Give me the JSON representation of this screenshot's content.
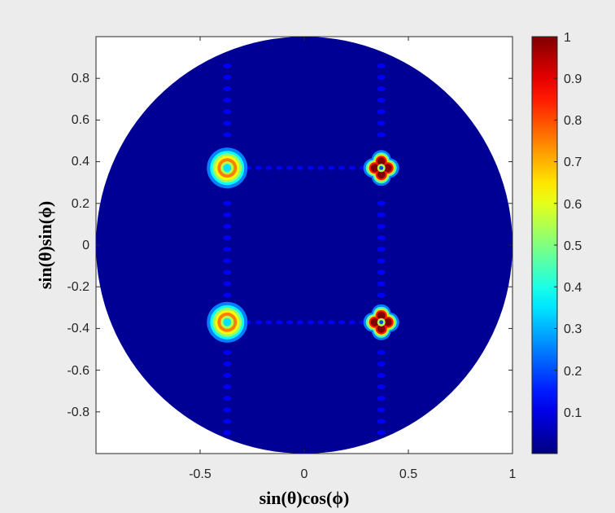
{
  "chart_data": {
    "type": "heatmap",
    "title": "",
    "xlabel": "sin(θ)cos(ϕ)",
    "ylabel": "sin(θ)sin(ϕ)",
    "xlim": [
      -1,
      1
    ],
    "ylim": [
      -1,
      1
    ],
    "xticks": [
      -0.5,
      0,
      0.5,
      1
    ],
    "xtick_labels": [
      "-0.5",
      "0",
      "0.5",
      "1"
    ],
    "yticks": [
      0.8,
      0.6,
      0.4,
      0.2,
      0,
      -0.2,
      -0.4,
      -0.6,
      -0.8
    ],
    "ytick_labels": [
      "0.8",
      "0.6",
      "0.4",
      "0.2",
      "0",
      "-0.2",
      "-0.4",
      "-0.6",
      "-0.8"
    ],
    "colorbar": {
      "colormap": "jet",
      "range": [
        0,
        1
      ],
      "ticks": [
        1,
        0.9,
        0.8,
        0.7,
        0.6,
        0.5,
        0.4,
        0.3,
        0.2,
        0.1
      ],
      "tick_labels": [
        "1",
        "0.9",
        "0.8",
        "0.7",
        "0.6",
        "0.5",
        "0.4",
        "0.3",
        "0.2",
        "0.1"
      ]
    },
    "domain": "unit circle",
    "grid": false,
    "background_value": 0.02,
    "peaks": [
      {
        "x": -0.37,
        "y": 0.37,
        "value": 0.75,
        "shape": "ring"
      },
      {
        "x": -0.37,
        "y": -0.37,
        "value": 0.75,
        "shape": "ring"
      },
      {
        "x": 0.37,
        "y": 0.37,
        "value": 1.0,
        "shape": "four-lobe"
      },
      {
        "x": 0.37,
        "y": -0.37,
        "value": 1.0,
        "shape": "four-lobe"
      }
    ]
  }
}
